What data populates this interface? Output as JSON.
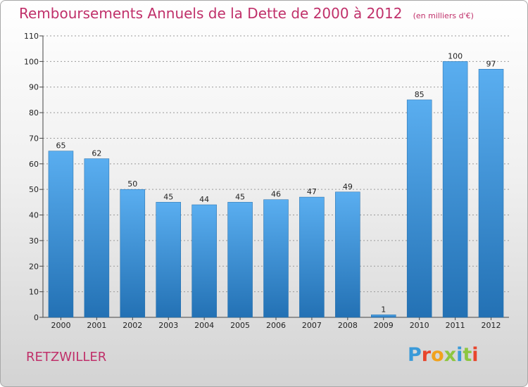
{
  "title": "Remboursements Annuels de la Dette de 2000 à 2012",
  "unit": "(en milliers d'€)",
  "commune": "RETZWILLER",
  "logo": {
    "text": "Proxiti",
    "colors": [
      "#3a9ad9",
      "#e8452c",
      "#f1a21d",
      "#8dc63f",
      "#3a9ad9",
      "#8dc63f",
      "#e8452c"
    ]
  },
  "chart_data": {
    "type": "bar",
    "title": "Remboursements Annuels de la Dette de 2000 à 2012",
    "xlabel": "",
    "ylabel": "",
    "categories": [
      "2000",
      "2001",
      "2002",
      "2003",
      "2004",
      "2005",
      "2006",
      "2007",
      "2008",
      "2009",
      "2010",
      "2011",
      "2012"
    ],
    "values": [
      65,
      62,
      50,
      45,
      44,
      45,
      46,
      47,
      49,
      1,
      85,
      100,
      97
    ],
    "ylim": [
      0,
      110
    ],
    "yticks": [
      0,
      10,
      20,
      30,
      40,
      50,
      60,
      70,
      80,
      90,
      100,
      110
    ],
    "grid": true,
    "bar_color": "#3d8fd0"
  }
}
